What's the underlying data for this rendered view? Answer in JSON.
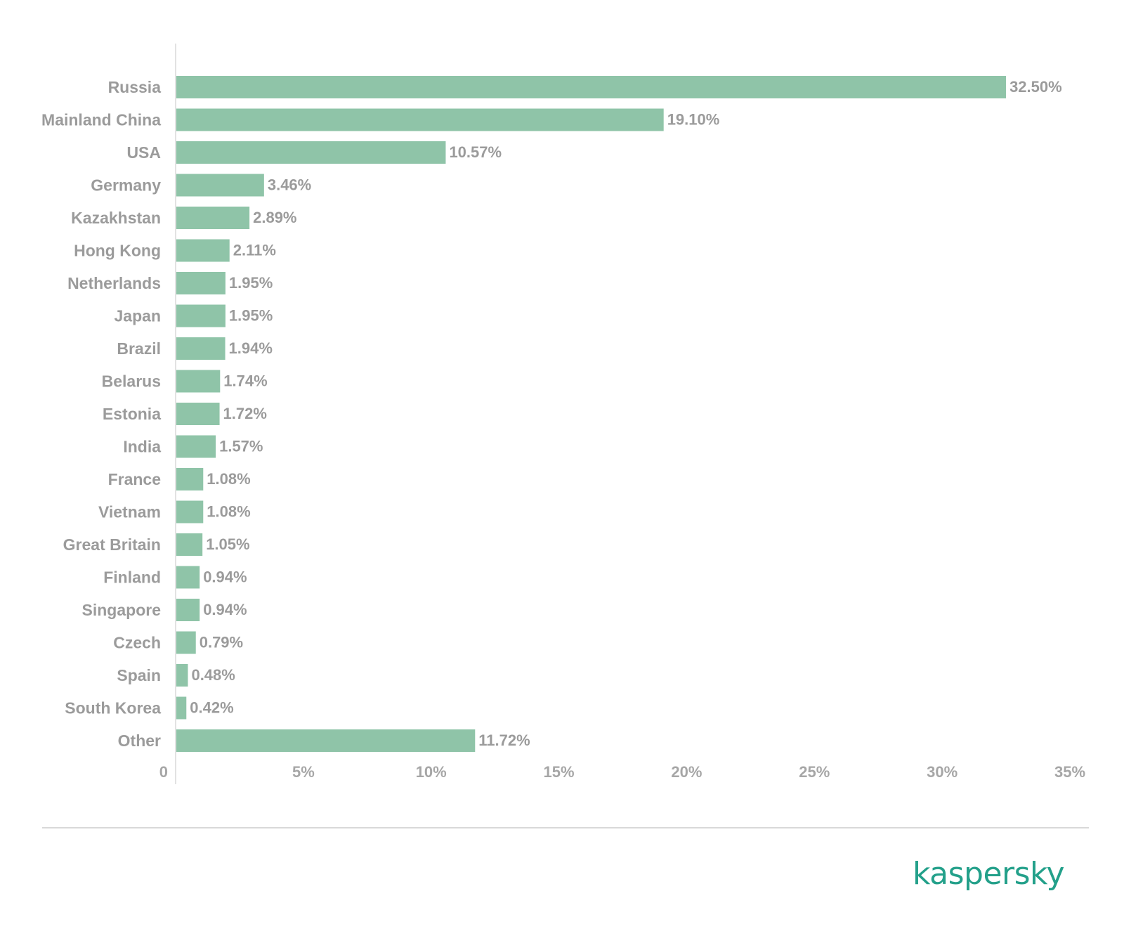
{
  "colors": {
    "bar": "#8fc4a8",
    "label_text": "#9b9b9b",
    "tick_text": "#a6a6a6",
    "axis_line": "#d9d9d9",
    "brand": "#23a08a"
  },
  "brand": {
    "logo_text": "kaspersky"
  },
  "chart_data": {
    "type": "bar",
    "orientation": "horizontal",
    "categories": [
      "Russia",
      "Mainland China",
      "USA",
      "Germany",
      "Kazakhstan",
      "Hong Kong",
      "Netherlands",
      "Japan",
      "Brazil",
      "Belarus",
      "Estonia",
      "India",
      "France",
      "Vietnam",
      "Great Britain",
      "Finland",
      "Singapore",
      "Czech",
      "Spain",
      "South Korea",
      "Other"
    ],
    "values": [
      32.5,
      19.1,
      10.57,
      3.46,
      2.89,
      2.11,
      1.95,
      1.95,
      1.94,
      1.74,
      1.72,
      1.57,
      1.08,
      1.08,
      1.05,
      0.94,
      0.94,
      0.79,
      0.48,
      0.42,
      11.72
    ],
    "value_labels": [
      "32.50%",
      "19.10%",
      "10.57%",
      "3.46%",
      "2.89%",
      "2.11%",
      "1.95%",
      "1.95%",
      "1.94%",
      "1.74%",
      "1.72%",
      "1.57%",
      "1.08%",
      "1.08%",
      "1.05%",
      "0.94%",
      "0.94%",
      "0.79%",
      "0.48%",
      "0.42%",
      "11.72%"
    ],
    "x_ticks": [
      0,
      5,
      10,
      15,
      20,
      25,
      30,
      35
    ],
    "x_tick_labels": [
      "0",
      "5%",
      "10%",
      "15%",
      "20%",
      "25%",
      "30%",
      "35%"
    ],
    "xlim": [
      0,
      35
    ],
    "title": "",
    "xlabel": "",
    "ylabel": "",
    "grid": false,
    "legend": "none"
  }
}
